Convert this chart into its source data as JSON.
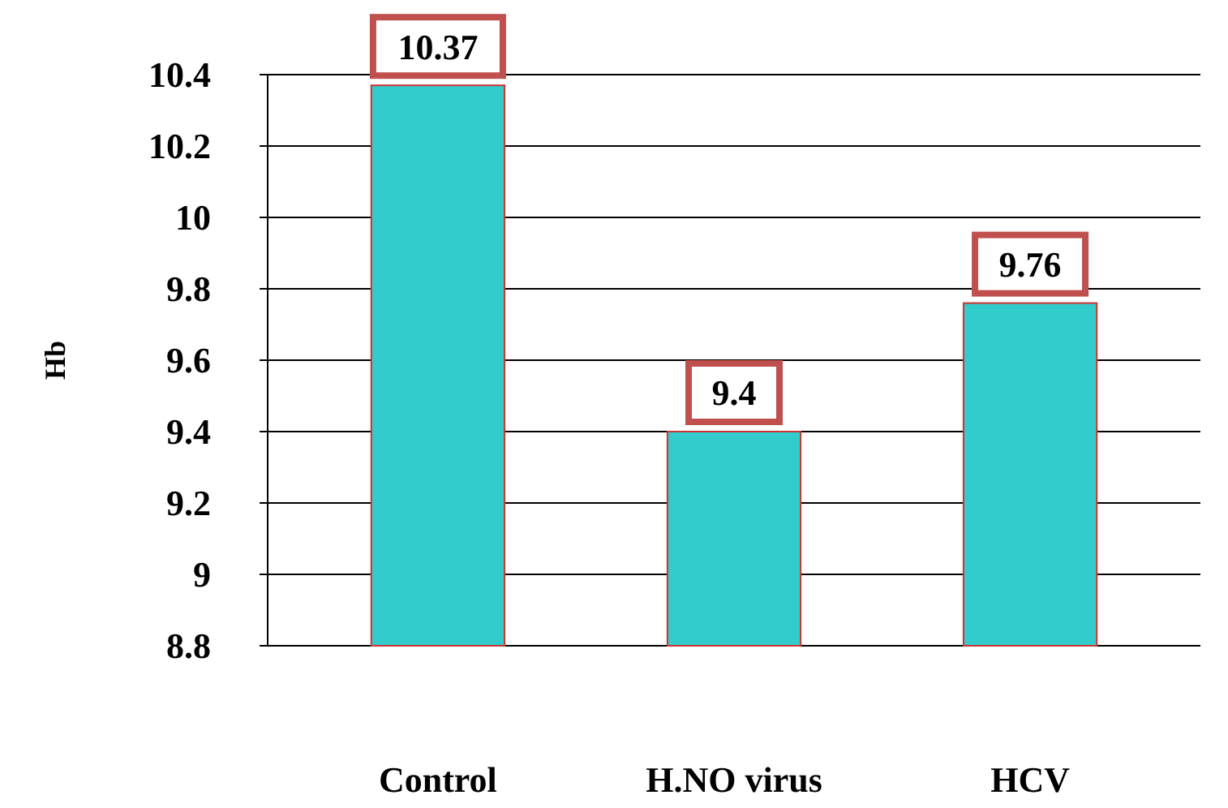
{
  "chart_data": {
    "type": "bar",
    "ylabel": "Hb",
    "categories": [
      "Control",
      "H.NO virus",
      "HCV"
    ],
    "values": [
      10.37,
      9.4,
      9.76
    ],
    "color": "#33cccc",
    "ylim": [
      8.8,
      10.4
    ],
    "yticks": [
      {
        "value": 8.8,
        "label": "8.8"
      },
      {
        "value": 9,
        "label": "9"
      },
      {
        "value": 9.2,
        "label": "9.2"
      },
      {
        "value": 9.4,
        "label": "9.4"
      },
      {
        "value": 9.6,
        "label": "9.6"
      },
      {
        "value": 9.8,
        "label": "9.8"
      },
      {
        "value": 10,
        "label": "10"
      },
      {
        "value": 10.2,
        "label": "10.2"
      },
      {
        "value": 10.4,
        "label": "10.4"
      }
    ],
    "grid": "y",
    "data_labels": true
  }
}
